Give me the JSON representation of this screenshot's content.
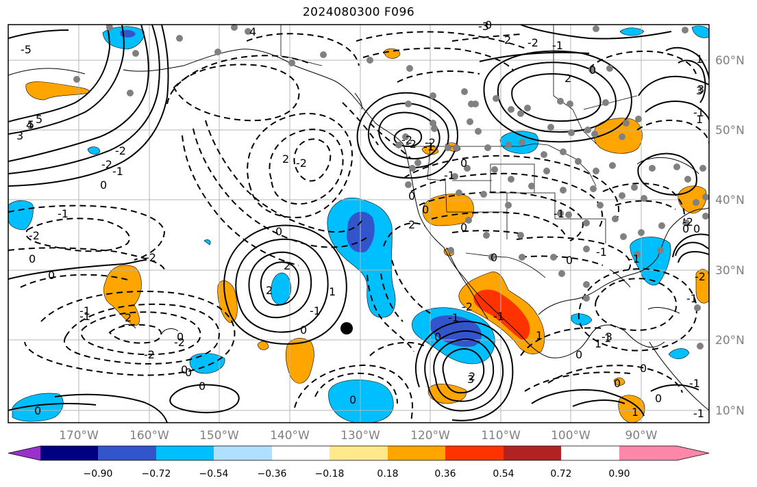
{
  "title": "2024080300 F096",
  "map": {
    "lon_labels": [
      "170°W",
      "160°W",
      "150°W",
      "140°W",
      "130°W",
      "120°W",
      "110°W",
      "100°W",
      "90°W"
    ],
    "lat_labels": [
      "60°N",
      "50°N",
      "40°N",
      "30°N",
      "20°N",
      "10°N"
    ],
    "contour_labels": [
      "-1",
      "-2",
      "0",
      "0",
      "-2",
      "2",
      "-1",
      "0",
      "-2",
      "0",
      "0",
      "-2",
      "0",
      "2",
      "2",
      "-1",
      "1",
      "0",
      "0",
      "2",
      "0",
      "-1",
      "0",
      "-1",
      "-2",
      "0",
      "-1",
      "-2",
      "-3",
      "1",
      "2",
      "0",
      "-1",
      "-2",
      "2",
      "0",
      "-1",
      "3",
      "-5",
      "4",
      "5",
      "5",
      "4",
      "3",
      "-2",
      "-2",
      "-1",
      "0",
      "-1",
      "-3",
      "-1",
      "0",
      "0",
      "-1",
      "-2",
      "1",
      "2",
      "1",
      "0",
      "1",
      "2",
      "0",
      "3",
      "-1",
      "0",
      "0",
      "-2",
      "-1",
      "1",
      "-1",
      "0",
      "-1",
      "0",
      "0",
      "1",
      "3",
      "-2",
      "-2",
      "0",
      "-2",
      "-1",
      "0",
      "0"
    ]
  },
  "colorbar": {
    "ticks": [
      "−0.90",
      "−0.72",
      "−0.54",
      "−0.36",
      "−0.18",
      "0.18",
      "0.36",
      "0.54",
      "0.72",
      "0.90"
    ],
    "colors": [
      "#9932cc",
      "#000080",
      "#3355cc",
      "#00bfff",
      "#b0e0ff",
      "#ffffff",
      "#ffe98a",
      "#ffa500",
      "#ff3300",
      "#b22222",
      "#ff88aa"
    ]
  },
  "legend_colors": {
    "neg_light": "#b0e0ff",
    "neg_mid": "#00bfff",
    "neg_strong": "#3355cc",
    "pos_light": "#ffe98a",
    "pos_mid": "#ffa500",
    "pos_strong": "#ff3300",
    "station_marker": "#808080"
  }
}
